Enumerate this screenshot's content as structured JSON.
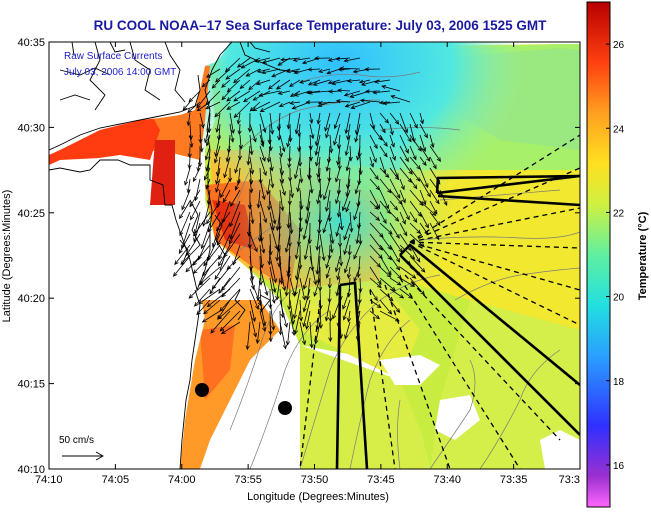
{
  "title": "RU COOL  NOAA–17  Sea Surface Temperature:  July 03, 2006 1525 GMT",
  "overlay": {
    "line1": "Raw Surface Currents",
    "line2": "July 03, 2006 14:00 GMT"
  },
  "x_axis": {
    "label": "Longitude (Degrees:Minutes)",
    "ticks": [
      "74:10",
      "74:05",
      "74:00",
      "73:55",
      "73:50",
      "73:45",
      "73:40",
      "73:35",
      "73:3"
    ]
  },
  "y_axis": {
    "label": "Latitude (Degrees:Minutes)",
    "ticks": [
      "40:35",
      "40:30",
      "40:25",
      "40:20",
      "40:15",
      "40:10"
    ]
  },
  "scale_bar": {
    "label": "50 cm/s"
  },
  "colorbar": {
    "label": "Temperature (°C)",
    "ticks": [
      "26",
      "24",
      "22",
      "20",
      "18",
      "16"
    ],
    "range": [
      15,
      27
    ]
  },
  "colors": {
    "title": "#1a1aa0",
    "overlay_text": "#1e1ec8",
    "land": "#ffffff",
    "coast": "#000000"
  }
}
